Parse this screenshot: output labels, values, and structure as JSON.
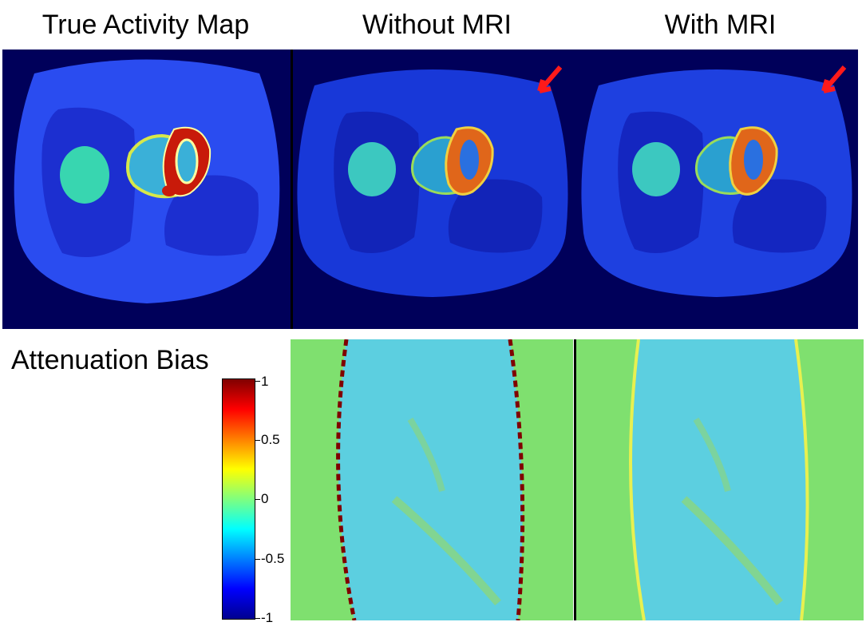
{
  "top_row": {
    "titles": [
      "True Activity Map",
      "Without MRI",
      "With MRI"
    ]
  },
  "bottom_row": {
    "title": "Attenuation Bias",
    "colorbar": {
      "ticks": [
        "1",
        "0.5",
        "0",
        "-0.5",
        "-1"
      ],
      "colors": [
        "#00008f",
        "#0000ff",
        "#00ffff",
        "#7fff7f",
        "#ffff00",
        "#ff0000",
        "#800000"
      ]
    }
  },
  "colors": {
    "background_dark": "#00005a",
    "body_blue": "#2a4cf0",
    "lung_blue": "#1c2fd0",
    "heart_red": "#c81a0a",
    "bias_green": "#7fe06f",
    "bias_cyan": "#5ccfe0",
    "arrow_red": "#ff1a1a"
  }
}
